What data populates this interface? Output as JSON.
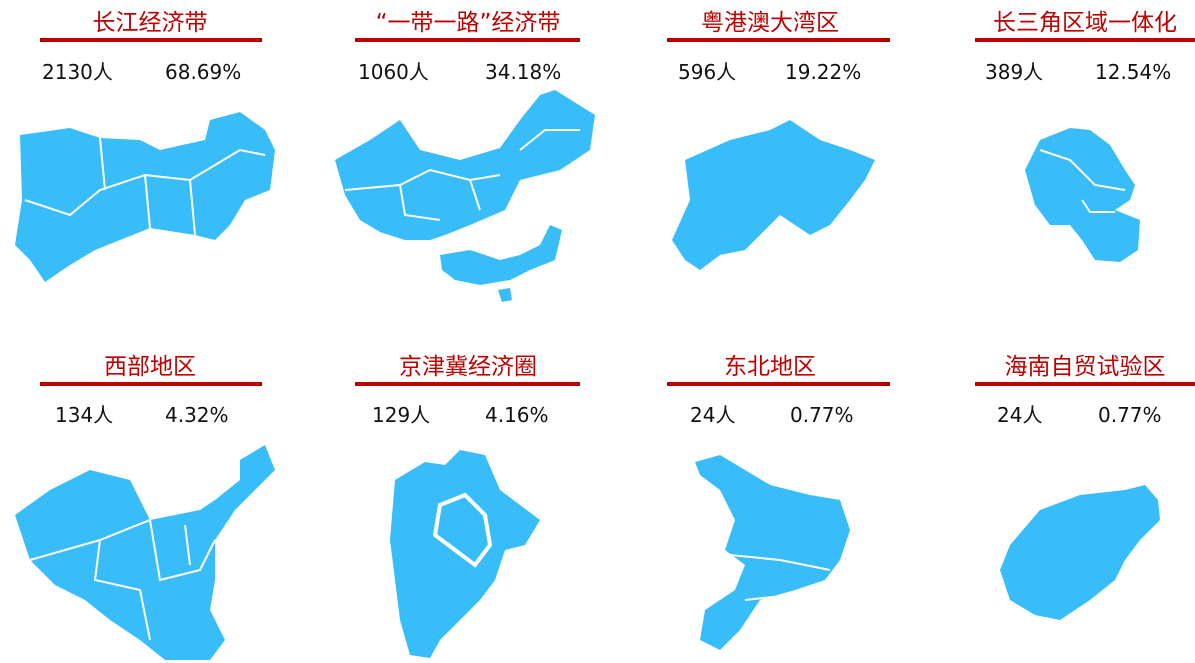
{
  "panels": [
    {
      "title": "长江经济带",
      "count": "2130人",
      "percent": "68.69%"
    },
    {
      "title": "“一带一路”经济带",
      "count": "1060人",
      "percent": "34.18%"
    },
    {
      "title": "粤港澳大湾区",
      "count": "596人",
      "percent": "19.22%"
    },
    {
      "title": "长三角区域一体化",
      "count": "389人",
      "percent": "12.54%"
    },
    {
      "title": "西部地区",
      "count": "134人",
      "percent": "4.32%"
    },
    {
      "title": "京津冀经济圈",
      "count": "129人",
      "percent": "4.16%"
    },
    {
      "title": "东北地区",
      "count": "24人",
      "percent": "0.77%"
    },
    {
      "title": "海南自贸试验区",
      "count": "24人",
      "percent": "0.77%"
    }
  ]
}
